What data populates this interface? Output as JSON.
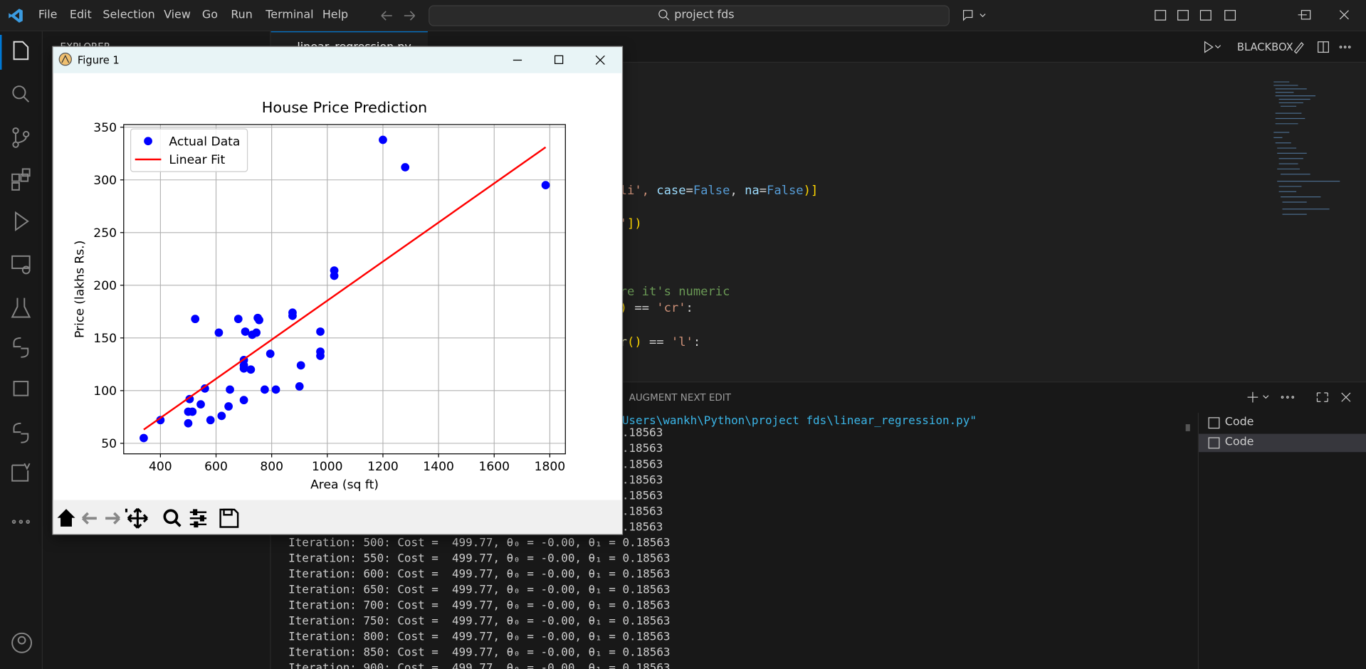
{
  "menu": [
    "File",
    "Edit",
    "Selection",
    "View",
    "Go",
    "Run",
    "Terminal",
    "Help"
  ],
  "search": "project fds",
  "sidebar_title": "EXPLORER",
  "tab": "linear_regression.py",
  "toolbar_label": "BLACKBOX",
  "code_lines": [
    [
      {
        "text": ")",
        "color": "#ffd700"
      }
    ],
    [
      {
        "text": "oli', ",
        "color": "#ce9178"
      },
      {
        "text": "case",
        "color": "#9cdcfe"
      },
      {
        "text": "=",
        "color": "#d4d4d4"
      },
      {
        "text": "False",
        "color": "#569cd6"
      },
      {
        "text": ", ",
        "color": "#d4d4d4"
      },
      {
        "text": "na",
        "color": "#9cdcfe"
      },
      {
        "text": "=",
        "color": "#d4d4d4"
      },
      {
        "text": "False",
        "color": "#569cd6"
      },
      {
        "text": ")]",
        "color": "#ffd700"
      }
    ],
    [
      {
        "text": "t'",
        "color": "#ce9178"
      },
      {
        "text": "])",
        "color": "#ffd700"
      }
    ],
    [
      {
        "text": "ure it's numeric",
        "color": "#6a9955"
      }
    ],
    [
      {
        "text": "()",
        "color": "#ffd700"
      },
      {
        "text": " == ",
        "color": "#d4d4d4"
      },
      {
        "text": "'cr'",
        "color": "#ce9178"
      },
      {
        "text": ":",
        "color": "#d4d4d4"
      }
    ],
    [
      {
        "text": "er",
        "color": "#dcdcaa"
      },
      {
        "text": "()",
        "color": "#ffd700"
      },
      {
        "text": " == ",
        "color": "#d4d4d4"
      },
      {
        "text": "'l'",
        "color": "#ce9178"
      },
      {
        "text": ":",
        "color": "#d4d4d4"
      }
    ]
  ],
  "panel_tab": "AUGMENT NEXT EDIT",
  "terminal": {
    "command": "Users\\wankh\\Python\\project fds\\linear_regression.py\"",
    "fragments": [
      ".18563",
      ".18563",
      ".18563",
      ".18563",
      ".18563",
      ".18563",
      ".18563"
    ],
    "lines": [
      "Iteration: 500: Cost =  499.77, θ₀ = -0.00, θ₁ = 0.18563",
      "Iteration: 550: Cost =  499.77, θ₀ = -0.00, θ₁ = 0.18563",
      "Iteration: 600: Cost =  499.77, θ₀ = -0.00, θ₁ = 0.18563",
      "Iteration: 650: Cost =  499.77, θ₀ = -0.00, θ₁ = 0.18563",
      "Iteration: 700: Cost =  499.77, θ₀ = -0.00, θ₁ = 0.18563",
      "Iteration: 750: Cost =  499.77, θ₀ = -0.00, θ₁ = 0.18563",
      "Iteration: 800: Cost =  499.77, θ₀ = -0.00, θ₁ = 0.18563",
      "Iteration: 850: Cost =  499.77, θ₀ = -0.00, θ₁ = 0.18563",
      "Iteration: 900: Cost =  499.77, θ₀ = -0.00, θ₁ = 0.18563"
    ]
  },
  "terminals": [
    "Code",
    "Code"
  ],
  "figure": {
    "title": "Figure 1"
  },
  "chart_data": {
    "type": "scatter",
    "title": "House Price Prediction",
    "x_label": "Area (sq ft)",
    "y_label": "Price (lakhs Rs.)",
    "xlim": [
      268,
      1856
    ],
    "ylim": [
      40,
      352.5
    ],
    "xticks": [
      400,
      600,
      800,
      1000,
      1200,
      1400,
      1600,
      1800
    ],
    "yticks": [
      50,
      100,
      150,
      200,
      250,
      300,
      350
    ],
    "grid": true,
    "legend": "upper left",
    "series": [
      {
        "name": "Actual Data",
        "type": "scatter",
        "color": "#0000ff",
        "x": [
          340,
          400,
          500,
          500,
          515,
          505,
          545,
          560,
          525,
          580,
          610,
          620,
          645,
          650,
          680,
          700,
          700,
          700,
          705,
          700,
          725,
          730,
          745,
          750,
          755,
          775,
          795,
          815,
          875,
          875,
          900,
          905,
          975,
          975,
          975,
          1025,
          1025,
          1200,
          1280,
          1785
        ],
        "values": [
          55,
          72,
          69,
          80,
          80,
          92,
          87,
          102,
          168,
          72,
          155,
          76,
          85,
          101,
          168,
          129,
          124,
          121,
          156,
          91,
          120,
          153,
          155,
          169,
          167,
          101,
          135,
          101,
          174,
          171,
          104,
          124,
          156,
          137,
          133,
          214,
          209,
          338,
          312,
          295
        ]
      },
      {
        "name": "Linear Fit",
        "type": "line",
        "color": "#ff0000",
        "x": [
          340,
          1785
        ],
        "values": [
          63,
          331
        ]
      }
    ]
  }
}
